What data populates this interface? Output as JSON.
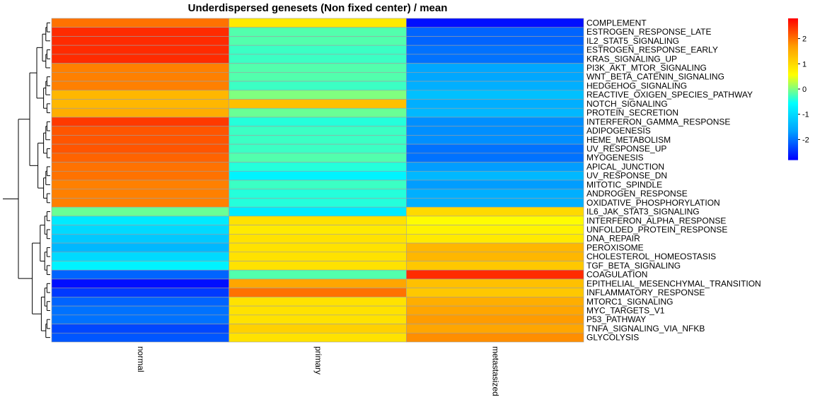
{
  "chart_data": {
    "type": "heatmap",
    "title": "Underdispersed genesets (Non fixed center) / mean",
    "columns": [
      "normal",
      "primary",
      "metastasized"
    ],
    "rows": [
      "COMPLEMENT",
      "ESTROGEN_RESPONSE_LATE",
      "IL2_STAT5_SIGNALING",
      "ESTROGEN_RESPONSE_EARLY",
      "KRAS_SIGNALING_UP",
      "PI3K_AKT_MTOR_SIGNALING",
      "WNT_BETA_CATENIN_SIGNALING",
      "HEDGEHOG_SIGNALING",
      "REACTIVE_OXIGEN_SPECIES_PATHWAY",
      "NOTCH_SIGNALING",
      "PROTEIN_SECRETION",
      "INTERFERON_GAMMA_RESPONSE",
      "ADIPOGENESIS",
      "HEME_METABOLISM",
      "UV_RESPONSE_UP",
      "MYOGENESIS",
      "APICAL_JUNCTION",
      "UV_RESPONSE_DN",
      "MITOTIC_SPINDLE",
      "ANDROGEN_RESPONSE",
      "OXIDATIVE_PHOSPHORYLATION",
      "IL6_JAK_STAT3_SIGNALING",
      "INTERFERON_ALPHA_RESPONSE",
      "UNFOLDED_PROTEIN_RESPONSE",
      "DNA_REPAIR",
      "PEROXISOME",
      "CHOLESTEROL_HOMEOSTASIS",
      "TGF_BETA_SIGNALING",
      "COAGULATION",
      "EPITHELIAL_MESENCHYMAL_TRANSITION",
      "INFLAMMATORY_RESPONSE",
      "MTORC1_SIGNALING",
      "MYC_TARGETS_V1",
      "P53_PATHWAY",
      "TNFA_SIGNALING_VIA_NFKB",
      "GLYCOLYSIS"
    ],
    "values": [
      [
        2.0,
        0.8,
        -2.7
      ],
      [
        2.5,
        -0.2,
        -2.1
      ],
      [
        2.5,
        -0.2,
        -2.1
      ],
      [
        2.5,
        -0.3,
        -2.0
      ],
      [
        2.5,
        -0.3,
        -2.0
      ],
      [
        1.9,
        -0.2,
        -1.6
      ],
      [
        1.9,
        -0.2,
        -1.6
      ],
      [
        1.9,
        -0.3,
        -1.5
      ],
      [
        1.4,
        0.0,
        -1.3
      ],
      [
        1.4,
        1.3,
        -1.5
      ],
      [
        1.5,
        -0.1,
        -1.4
      ],
      [
        2.4,
        -0.4,
        -1.8
      ],
      [
        2.2,
        -0.3,
        -1.8
      ],
      [
        2.2,
        -0.3,
        -1.8
      ],
      [
        2.2,
        -0.3,
        -2.0
      ],
      [
        2.1,
        -0.2,
        -2.0
      ],
      [
        2.0,
        -0.4,
        -1.7
      ],
      [
        2.0,
        -0.7,
        -1.4
      ],
      [
        1.9,
        -0.3,
        -1.7
      ],
      [
        1.9,
        -0.4,
        -1.5
      ],
      [
        1.9,
        -0.4,
        -1.5
      ],
      [
        -0.1,
        -0.8,
        1.0
      ],
      [
        -0.8,
        0.9,
        0.6
      ],
      [
        -1.0,
        0.8,
        0.7
      ],
      [
        -1.2,
        0.9,
        0.8
      ],
      [
        -1.4,
        0.9,
        1.4
      ],
      [
        -1.0,
        0.9,
        1.4
      ],
      [
        -0.7,
        0.9,
        1.2
      ],
      [
        -2.1,
        -0.2,
        2.5
      ],
      [
        -2.7,
        1.6,
        1.3
      ],
      [
        -2.4,
        2.0,
        1.2
      ],
      [
        -2.1,
        0.9,
        1.5
      ],
      [
        -2.0,
        0.9,
        1.6
      ],
      [
        -2.0,
        0.9,
        1.7
      ],
      [
        -2.3,
        1.1,
        1.6
      ],
      [
        -2.2,
        0.9,
        1.8
      ]
    ],
    "colorbar": {
      "ticks": [
        2,
        1,
        0,
        -1,
        -2
      ],
      "tick_labels": [
        "2",
        "1",
        "0",
        "-1",
        "-2"
      ],
      "range": [
        -2.8,
        2.8
      ],
      "colors": [
        "#0000ff",
        "#00a0ff",
        "#00ffff",
        "#ffff00",
        "#ff9f00",
        "#ff0000"
      ]
    },
    "row_dendrogram": true,
    "grid": false,
    "legend_position": "right"
  }
}
